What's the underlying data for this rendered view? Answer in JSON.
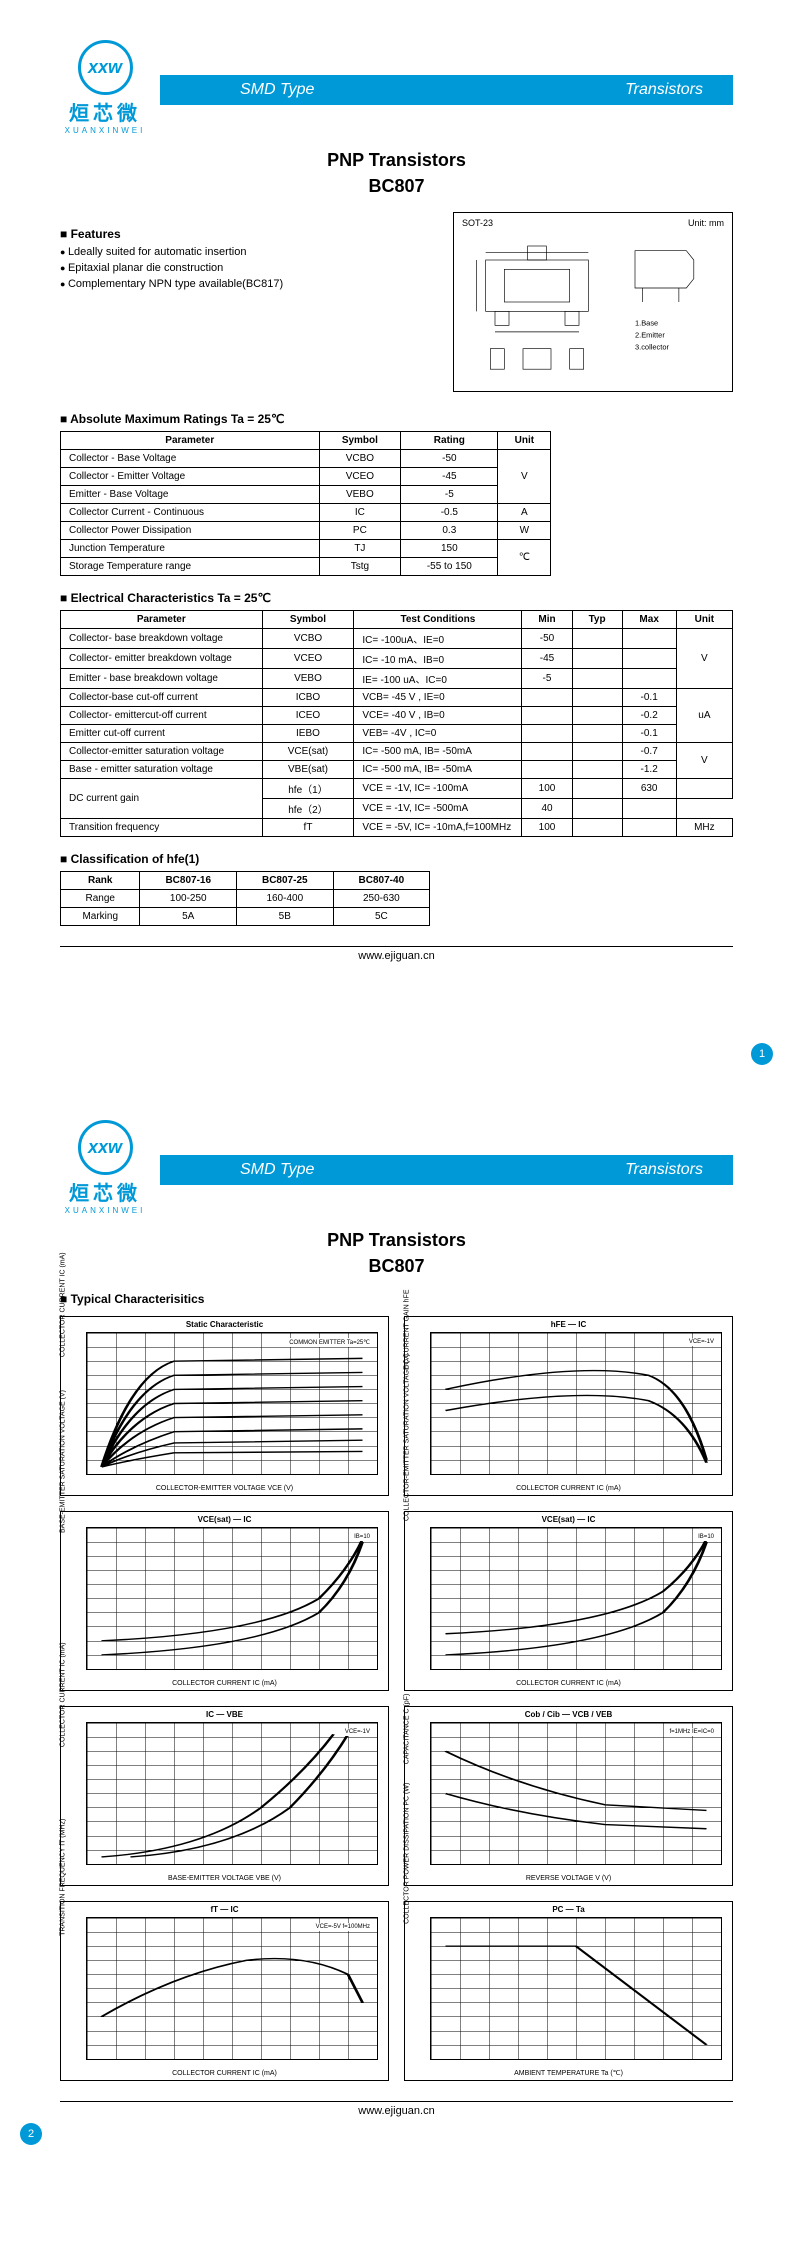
{
  "banner": {
    "left": "SMD Type",
    "right": "Transistors"
  },
  "logo": {
    "letters": "xxw",
    "cn": "烜芯微",
    "en": "XUANXINWEI"
  },
  "title": "PNP  Transistors",
  "part": "BC807",
  "features": {
    "heading": "Features",
    "items": [
      "Ldeally suited for automatic insertion",
      "Epitaxial planar die construction",
      "Complementary NPN type available(BC817)"
    ]
  },
  "package": {
    "type": "SOT-23",
    "unit": "Unit: mm",
    "pins": [
      "1.Base",
      "2.Emitter",
      "3.collector"
    ]
  },
  "abs_max": {
    "heading": "Absolute Maximum Ratings Ta = 25℃",
    "headers": [
      "Parameter",
      "Symbol",
      "Rating",
      "Unit"
    ],
    "rows": [
      [
        "Collector - Base Voltage",
        "VCBO",
        "-50",
        "V",
        3
      ],
      [
        "Collector - Emitter Voltage",
        "VCEO",
        "-45",
        "",
        0
      ],
      [
        "Emitter - Base Voltage",
        "VEBO",
        "-5",
        "",
        0
      ],
      [
        "Collector Current - Continuous",
        "IC",
        "-0.5",
        "A",
        1
      ],
      [
        "Collector Power Dissipation",
        "PC",
        "0.3",
        "W",
        1
      ],
      [
        "Junction Temperature",
        "TJ",
        "150",
        "℃",
        2
      ],
      [
        "Storage Temperature range",
        "Tstg",
        "-55 to 150",
        "",
        0
      ]
    ]
  },
  "elec": {
    "heading": "Electrical Characteristics Ta = 25℃",
    "headers": [
      "Parameter",
      "Symbol",
      "Test Conditions",
      "Min",
      "Typ",
      "Max",
      "Unit"
    ],
    "rows": [
      [
        "Collector- base breakdown voltage",
        "VCBO",
        "IC= -100uA、IE=0",
        "-50",
        "",
        "",
        "V",
        3
      ],
      [
        "Collector- emitter breakdown voltage",
        "VCEO",
        "IC= -10 mA、IB=0",
        "-45",
        "",
        "",
        "",
        0
      ],
      [
        "Emitter - base breakdown voltage",
        "VEBO",
        "IE= -100 uA、IC=0",
        "-5",
        "",
        "",
        "",
        0
      ],
      [
        "Collector-base cut-off current",
        "ICBO",
        "VCB= -45 V , IE=0",
        "",
        "",
        "-0.1",
        "uA",
        3
      ],
      [
        "Collector- emittercut-off current",
        "ICEO",
        "VCE= -40 V , IB=0",
        "",
        "",
        "-0.2",
        "",
        0
      ],
      [
        "Emitter cut-off current",
        "IEBO",
        "VEB= -4V , IC=0",
        "",
        "",
        "-0.1",
        "",
        0
      ],
      [
        "Collector-emitter saturation voltage",
        "VCE(sat)",
        "IC= -500 mA, IB= -50mA",
        "",
        "",
        "-0.7",
        "V",
        2
      ],
      [
        "Base - emitter saturation voltage",
        "VBE(sat)",
        "IC= -500 mA, IB= -50mA",
        "",
        "",
        "-1.2",
        "",
        0
      ],
      [
        "DC current gain",
        "hfe（1）",
        "VCE = -1V, IC= -100mA",
        "100",
        "",
        "630",
        "",
        1,
        2
      ],
      [
        "",
        "hfe（2）",
        "VCE = -1V, IC= -500mA",
        "40",
        "",
        "",
        "",
        0,
        0
      ],
      [
        "Transition frequency",
        "fT",
        "VCE = -5V, IC= -10mA,f=100MHz",
        "100",
        "",
        "",
        "MHz",
        1
      ]
    ]
  },
  "hfe": {
    "heading": "Classification of hfe(1)",
    "headers": [
      "Rank",
      "BC807-16",
      "BC807-25",
      "BC807-40"
    ],
    "rows": [
      [
        "Range",
        "100-250",
        "160-400",
        "250-630"
      ],
      [
        "Marking",
        "5A",
        "5B",
        "5C"
      ]
    ]
  },
  "footer_url": "www.ejiguan.cn",
  "page2": {
    "heading": "Typical  Characterisitics",
    "charts": [
      {
        "title": "Static Characteristic",
        "ylabel": "COLLECTOR CURRENT  IC  (mA)",
        "xlabel": "COLLECTOR-EMITTER VOLTAGE  VCE  (V)",
        "note": "COMMON EMITTER Ta=25℃"
      },
      {
        "title": "hFE — IC",
        "ylabel": "DC CURRENT GAIN  hFE",
        "xlabel": "COLLECTOR CURRENT  IC  (mA)",
        "note": "VCE=-1V"
      },
      {
        "title": "VCE(sat) — IC",
        "ylabel": "BASE-EMITTER SATURATION VOLTAGE  (V)",
        "xlabel": "COLLECTOR CURRENT  IC  (mA)",
        "note": "IB=10"
      },
      {
        "title": "VCE(sat) — IC",
        "ylabel": "COLLECTOR-EMITTER SATURATION VOLTAGE  (V)",
        "xlabel": "COLLECTOR CURRENT  IC  (mA)",
        "note": "IB=10"
      },
      {
        "title": "IC — VBE",
        "ylabel": "COLLECTOR CURRENT  IC  (mA)",
        "xlabel": "BASE-EMITTER VOLTAGE  VBE (V)",
        "note": "VCE=-1V"
      },
      {
        "title": "Cob / Cib — VCB / VEB",
        "ylabel": "CAPACITANCE  C  (pF)",
        "xlabel": "REVERSE  VOLTAGE   V   (V)",
        "note": "f=1MHz IE=IC=0"
      },
      {
        "title": "fT — IC",
        "ylabel": "TRANSITION FREQUENCY  fT  (MHz)",
        "xlabel": "COLLECTOR CURRENT  IC  (mA)",
        "note": "VCE=-5V f=100MHz"
      },
      {
        "title": "PC — Ta",
        "ylabel": "COLLECTOR POWER DISSIPATION PC (W)",
        "xlabel": "AMBIENT TEMPERATURE  Ta  (℃)",
        "note": ""
      }
    ]
  }
}
